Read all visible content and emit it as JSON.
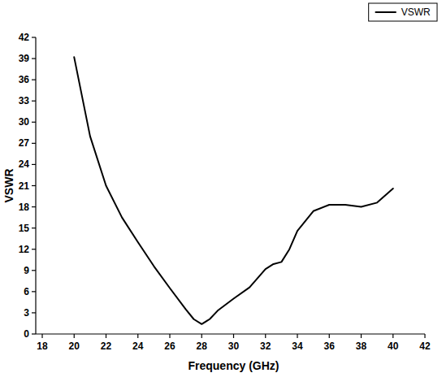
{
  "chart_data": {
    "type": "line",
    "x_label": "Frequency (GHz)",
    "y_label": "VSWR",
    "x": [
      20,
      21,
      22,
      23,
      24,
      25,
      26,
      27,
      27.5,
      28,
      28.5,
      29,
      30,
      31,
      32,
      32.5,
      33,
      33.5,
      34,
      35,
      36,
      37,
      38,
      39,
      40
    ],
    "series": [
      {
        "name": "VSWR",
        "color": "#000000",
        "values": [
          39.2,
          28,
          21,
          16.5,
          13,
          9.6,
          6.5,
          3.5,
          2.1,
          1.4,
          2.1,
          3.3,
          5,
          6.6,
          9.2,
          9.9,
          10.2,
          12,
          14.6,
          17.4,
          18.3,
          18.3,
          18,
          18.6,
          20.6
        ]
      }
    ],
    "xlim": [
      18,
      42
    ],
    "xticks": [
      18,
      20,
      22,
      24,
      26,
      28,
      30,
      32,
      34,
      36,
      38,
      40,
      42
    ],
    "ylim": [
      0,
      42
    ],
    "yticks": [
      0,
      3,
      6,
      9,
      12,
      15,
      18,
      21,
      24,
      27,
      30,
      33,
      36,
      39,
      42
    ],
    "grid": false,
    "legend": "top-right"
  }
}
